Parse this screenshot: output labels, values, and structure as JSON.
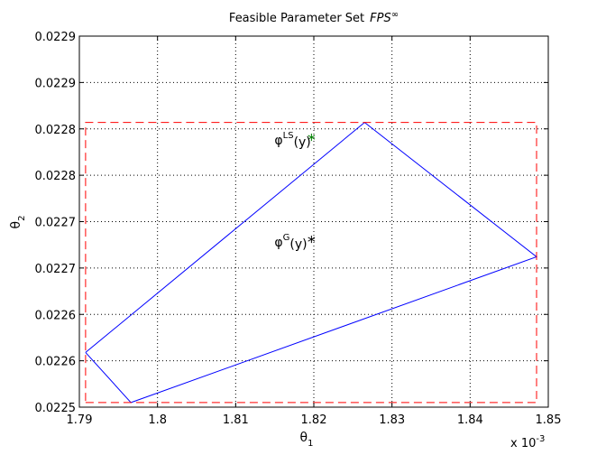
{
  "chart_data": {
    "type": "line",
    "title": "Feasible Parameter Set",
    "title_math": "FPS",
    "title_sup": "∞",
    "xlabel": "θ",
    "xlabel_sub": "1",
    "ylabel": "θ",
    "ylabel_sub": "2",
    "x_multiplier": "x 10",
    "x_multiplier_exp": "-3",
    "xlim": [
      1.79,
      1.85
    ],
    "ylim": [
      0.0225,
      0.0229
    ],
    "grid": true,
    "x_ticks": [
      1.79,
      1.8,
      1.81,
      1.82,
      1.83,
      1.84,
      1.85
    ],
    "x_tick_labels": [
      "1.79",
      "1.8",
      "1.81",
      "1.82",
      "1.83",
      "1.84",
      "1.85"
    ],
    "y_ticks": [
      0.0225,
      0.02255,
      0.0226,
      0.02265,
      0.0227,
      0.02275,
      0.0228,
      0.02285,
      0.0229
    ],
    "y_tick_labels": [
      "0.0225",
      "0.0226",
      "0.0226",
      "0.0227",
      "0.0227",
      "0.0228",
      "0.0228",
      "0.0229",
      "0.0229"
    ],
    "series": [
      {
        "kind": "polygon",
        "color": "#0000ff",
        "x": [
          1.7908,
          1.8265,
          1.8485,
          1.7966,
          1.7908
        ],
        "y": [
          0.022559,
          0.022807,
          0.022662,
          0.022505,
          0.022559
        ]
      },
      {
        "kind": "bounding-box",
        "color": "#ff0000",
        "dashed": true,
        "x": [
          1.7908,
          1.8485,
          1.8485,
          1.7908,
          1.7908
        ],
        "y": [
          0.022505,
          0.022505,
          0.022807,
          0.022807,
          0.022505
        ]
      }
    ],
    "points": [
      {
        "label": "φ",
        "sup": "LS",
        "arg": "(y)",
        "x": 1.8197,
        "y": 0.02279,
        "color": "#008000",
        "marker": "*"
      },
      {
        "label": "φ",
        "sup": "G",
        "arg": "(y)",
        "x": 1.8197,
        "y": 0.02268,
        "color": "#000000",
        "marker": "*"
      }
    ]
  }
}
